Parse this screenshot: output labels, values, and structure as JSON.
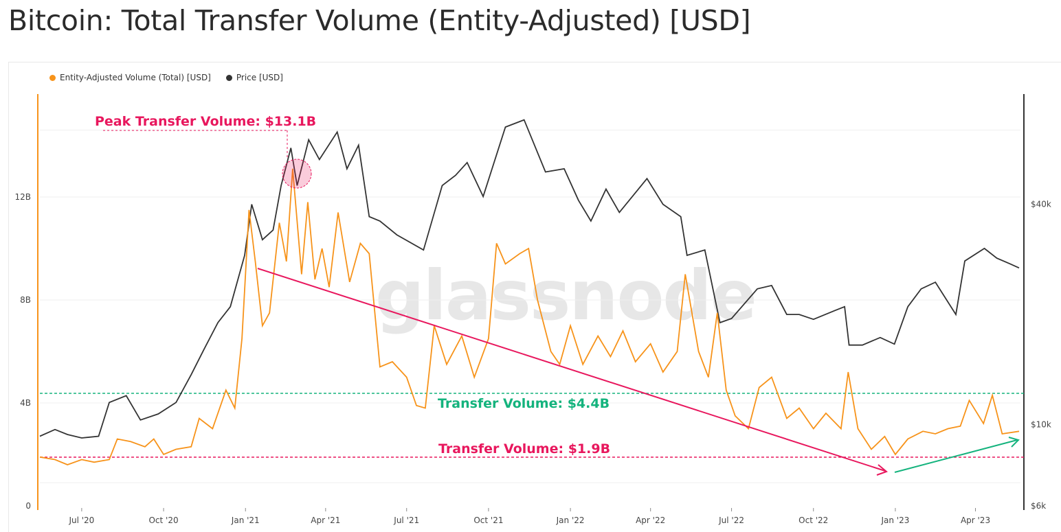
{
  "title": "Bitcoin: Total Transfer Volume (Entity-Adjusted) [USD]",
  "watermark": "glassnode",
  "colors": {
    "volume": "#f7931a",
    "price": "#333333",
    "peak": "#e8175d",
    "green": "#14b37d",
    "grid": "#efefef"
  },
  "legend": [
    {
      "label": "Entity-Adjusted Volume (Total) [USD]",
      "color": "#f7931a"
    },
    {
      "label": "Price [USD]",
      "color": "#333333"
    }
  ],
  "annotations": {
    "peak": "Peak Transfer Volume: $13.1B",
    "level_high": "Transfer Volume: $4.4B",
    "level_low": "Transfer Volume: $1.9B"
  },
  "chart_data": {
    "type": "line",
    "x_ticks": [
      "Jul '20",
      "Oct '20",
      "Jan '21",
      "Apr '21",
      "Jul '21",
      "Oct '21",
      "Jan '22",
      "Apr '22",
      "Jul '22",
      "Oct '22",
      "Jan '23",
      "Apr '23"
    ],
    "x_range": [
      "2020-05-15",
      "2023-05-20"
    ],
    "y_left": {
      "ticks": [
        "0",
        "4B",
        "8B",
        "12B"
      ],
      "min": 0,
      "max": 16000000000
    },
    "y_right": {
      "ticks": [
        "$6k",
        "$10k",
        "$40k"
      ],
      "scale": "log",
      "min": 6000,
      "max": 80000
    },
    "series": [
      {
        "name": "Entity-Adjusted Volume (Total) [USD]",
        "axis": "left",
        "color": "#f7931a",
        "points": [
          [
            "2020-05-15",
            1900000000.0
          ],
          [
            "2020-06-01",
            1800000000.0
          ],
          [
            "2020-06-15",
            1600000000.0
          ],
          [
            "2020-07-01",
            1800000000.0
          ],
          [
            "2020-07-15",
            1700000000.0
          ],
          [
            "2020-08-01",
            1800000000.0
          ],
          [
            "2020-08-10",
            2600000000.0
          ],
          [
            "2020-08-25",
            2500000000.0
          ],
          [
            "2020-09-10",
            2300000000.0
          ],
          [
            "2020-09-20",
            2600000000.0
          ],
          [
            "2020-10-01",
            2000000000.0
          ],
          [
            "2020-10-15",
            2200000000.0
          ],
          [
            "2020-11-01",
            2300000000.0
          ],
          [
            "2020-11-10",
            3400000000.0
          ],
          [
            "2020-11-25",
            3000000000.0
          ],
          [
            "2020-12-10",
            4500000000.0
          ],
          [
            "2020-12-20",
            3800000000.0
          ],
          [
            "2020-12-28",
            6500000000.0
          ],
          [
            "2021-01-05",
            11500000000.0
          ],
          [
            "2021-01-12",
            9500000000.0
          ],
          [
            "2021-01-20",
            7000000000.0
          ],
          [
            "2021-01-28",
            7500000000.0
          ],
          [
            "2021-02-08",
            11000000000.0
          ],
          [
            "2021-02-16",
            9500000000.0
          ],
          [
            "2021-02-23",
            13100000000.0
          ],
          [
            "2021-03-05",
            9000000000.0
          ],
          [
            "2021-03-12",
            11800000000.0
          ],
          [
            "2021-03-20",
            8800000000.0
          ],
          [
            "2021-03-28",
            10000000000.0
          ],
          [
            "2021-04-05",
            8500000000.0
          ],
          [
            "2021-04-15",
            11400000000.0
          ],
          [
            "2021-04-28",
            8700000000.0
          ],
          [
            "2021-05-10",
            10200000000.0
          ],
          [
            "2021-05-20",
            9800000000.0
          ],
          [
            "2021-06-01",
            5400000000.0
          ],
          [
            "2021-06-15",
            5600000000.0
          ],
          [
            "2021-07-01",
            5000000000.0
          ],
          [
            "2021-07-12",
            3900000000.0
          ],
          [
            "2021-07-22",
            3800000000.0
          ],
          [
            "2021-08-01",
            7000000000.0
          ],
          [
            "2021-08-15",
            5500000000.0
          ],
          [
            "2021-09-01",
            6600000000.0
          ],
          [
            "2021-09-15",
            5000000000.0
          ],
          [
            "2021-10-01",
            6500000000.0
          ],
          [
            "2021-10-10",
            10200000000.0
          ],
          [
            "2021-10-20",
            9400000000.0
          ],
          [
            "2021-11-05",
            9800000000.0
          ],
          [
            "2021-11-15",
            10000000000.0
          ],
          [
            "2021-11-25",
            8000000000.0
          ],
          [
            "2021-12-10",
            6000000000.0
          ],
          [
            "2021-12-20",
            5500000000.0
          ],
          [
            "2022-01-01",
            7000000000.0
          ],
          [
            "2022-01-15",
            5500000000.0
          ],
          [
            "2022-02-01",
            6600000000.0
          ],
          [
            "2022-02-15",
            5800000000.0
          ],
          [
            "2022-03-01",
            6800000000.0
          ],
          [
            "2022-03-15",
            5600000000.0
          ],
          [
            "2022-04-01",
            6300000000.0
          ],
          [
            "2022-04-15",
            5200000000.0
          ],
          [
            "2022-05-01",
            6000000000.0
          ],
          [
            "2022-05-10",
            9000000000.0
          ],
          [
            "2022-05-25",
            6000000000.0
          ],
          [
            "2022-06-05",
            5000000000.0
          ],
          [
            "2022-06-15",
            7500000000.0
          ],
          [
            "2022-06-25",
            4500000000.0
          ],
          [
            "2022-07-05",
            3500000000.0
          ],
          [
            "2022-07-20",
            3000000000.0
          ],
          [
            "2022-08-01",
            4600000000.0
          ],
          [
            "2022-08-15",
            5000000000.0
          ],
          [
            "2022-09-01",
            3400000000.0
          ],
          [
            "2022-09-15",
            3800000000.0
          ],
          [
            "2022-10-01",
            3000000000.0
          ],
          [
            "2022-10-15",
            3600000000.0
          ],
          [
            "2022-11-01",
            3000000000.0
          ],
          [
            "2022-11-09",
            5200000000.0
          ],
          [
            "2022-11-20",
            3000000000.0
          ],
          [
            "2022-12-05",
            2200000000.0
          ],
          [
            "2022-12-20",
            2700000000.0
          ],
          [
            "2023-01-01",
            2000000000.0
          ],
          [
            "2023-01-15",
            2600000000.0
          ],
          [
            "2023-02-01",
            2900000000.0
          ],
          [
            "2023-02-15",
            2800000000.0
          ],
          [
            "2023-03-01",
            3000000000.0
          ],
          [
            "2023-03-15",
            3100000000.0
          ],
          [
            "2023-03-25",
            4100000000.0
          ],
          [
            "2023-04-10",
            3200000000.0
          ],
          [
            "2023-04-20",
            4300000000.0
          ],
          [
            "2023-05-01",
            2800000000.0
          ],
          [
            "2023-05-20",
            2900000000.0
          ]
        ]
      },
      {
        "name": "Price [USD]",
        "axis": "right",
        "color": "#333333",
        "points": [
          [
            "2020-05-15",
            9300
          ],
          [
            "2020-06-01",
            9700
          ],
          [
            "2020-06-15",
            9400
          ],
          [
            "2020-07-01",
            9200
          ],
          [
            "2020-07-20",
            9300
          ],
          [
            "2020-08-01",
            11500
          ],
          [
            "2020-08-20",
            12000
          ],
          [
            "2020-09-05",
            10300
          ],
          [
            "2020-09-25",
            10700
          ],
          [
            "2020-10-15",
            11500
          ],
          [
            "2020-11-01",
            13700
          ],
          [
            "2020-11-15",
            16000
          ],
          [
            "2020-12-01",
            19000
          ],
          [
            "2020-12-15",
            21000
          ],
          [
            "2020-12-31",
            29000
          ],
          [
            "2021-01-08",
            40000
          ],
          [
            "2021-01-20",
            32000
          ],
          [
            "2021-02-01",
            34000
          ],
          [
            "2021-02-10",
            45000
          ],
          [
            "2021-02-21",
            57000
          ],
          [
            "2021-02-28",
            45000
          ],
          [
            "2021-03-13",
            60000
          ],
          [
            "2021-03-25",
            53000
          ],
          [
            "2021-04-14",
            63000
          ],
          [
            "2021-04-25",
            50000
          ],
          [
            "2021-05-08",
            58000
          ],
          [
            "2021-05-20",
            37000
          ],
          [
            "2021-06-01",
            36000
          ],
          [
            "2021-06-20",
            33000
          ],
          [
            "2021-07-20",
            30000
          ],
          [
            "2021-08-10",
            45000
          ],
          [
            "2021-08-25",
            48000
          ],
          [
            "2021-09-07",
            52000
          ],
          [
            "2021-09-25",
            42000
          ],
          [
            "2021-10-20",
            65000
          ],
          [
            "2021-11-10",
            68000
          ],
          [
            "2021-12-04",
            49000
          ],
          [
            "2021-12-25",
            50000
          ],
          [
            "2022-01-10",
            41000
          ],
          [
            "2022-01-24",
            36000
          ],
          [
            "2022-02-10",
            44000
          ],
          [
            "2022-02-25",
            38000
          ],
          [
            "2022-03-28",
            47000
          ],
          [
            "2022-04-15",
            40000
          ],
          [
            "2022-05-05",
            37000
          ],
          [
            "2022-05-12",
            29000
          ],
          [
            "2022-06-01",
            30000
          ],
          [
            "2022-06-18",
            19000
          ],
          [
            "2022-07-01",
            19500
          ],
          [
            "2022-07-30",
            23500
          ],
          [
            "2022-08-15",
            24000
          ],
          [
            "2022-09-01",
            20000
          ],
          [
            "2022-09-15",
            20000
          ],
          [
            "2022-10-01",
            19400
          ],
          [
            "2022-10-25",
            20500
          ],
          [
            "2022-11-05",
            21000
          ],
          [
            "2022-11-10",
            16500
          ],
          [
            "2022-11-25",
            16500
          ],
          [
            "2022-12-15",
            17300
          ],
          [
            "2022-12-31",
            16600
          ],
          [
            "2023-01-15",
            21000
          ],
          [
            "2023-01-30",
            23500
          ],
          [
            "2023-02-15",
            24500
          ],
          [
            "2023-03-10",
            20000
          ],
          [
            "2023-03-20",
            28000
          ],
          [
            "2023-04-11",
            30300
          ],
          [
            "2023-04-25",
            28500
          ],
          [
            "2023-05-10",
            27500
          ],
          [
            "2023-05-20",
            26800
          ]
        ]
      }
    ]
  }
}
